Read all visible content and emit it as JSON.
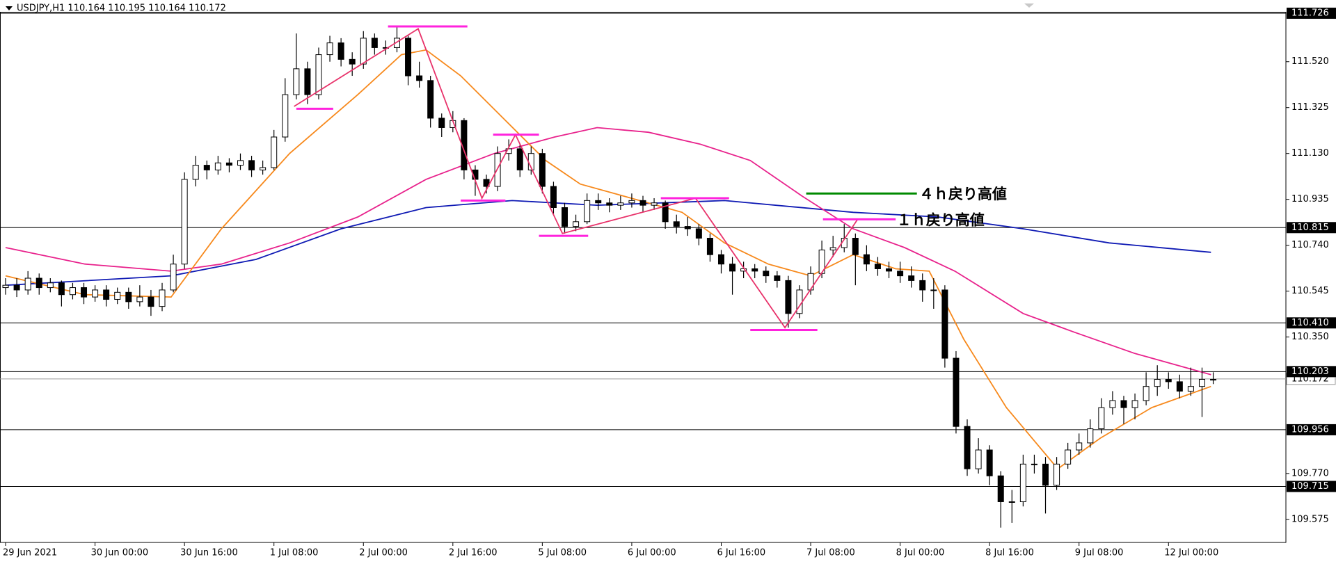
{
  "chart_data": {
    "type": "candlestick",
    "title": "USDJPY,H1  110.164 110.195 110.164 110.172",
    "xlim": [
      -0.5,
      114.5
    ],
    "ylim": [
      109.477,
      111.732
    ],
    "xticks": [
      {
        "value": 0,
        "label": "29 Jun 2021"
      },
      {
        "value": 8,
        "label": "30 Jun 00:00"
      },
      {
        "value": 16,
        "label": "30 Jun 16:00"
      },
      {
        "value": 24,
        "label": "1 Jul 08:00"
      },
      {
        "value": 32,
        "label": "2 Jul 00:00"
      },
      {
        "value": 40,
        "label": "2 Jul 16:00"
      },
      {
        "value": 48,
        "label": "5 Jul 08:00"
      },
      {
        "value": 56,
        "label": "6 Jul 00:00"
      },
      {
        "value": 64,
        "label": "6 Jul 16:00"
      },
      {
        "value": 72,
        "label": "7 Jul 08:00"
      },
      {
        "value": 80,
        "label": "8 Jul 00:00"
      },
      {
        "value": 88,
        "label": "8 Jul 16:00"
      },
      {
        "value": 96,
        "label": "9 Jul 08:00"
      },
      {
        "value": 104,
        "label": "12 Jul 00:00"
      }
    ],
    "yticks": [
      {
        "value": 111.52,
        "label": "111.520"
      },
      111.325,
      {
        "value": 111.13,
        "label": "111.130"
      },
      110.935,
      {
        "value": 110.74,
        "label": "110.740"
      },
      110.545,
      {
        "value": 110.35,
        "label": "110.350"
      },
      {
        "value": 109.77,
        "label": "109.770"
      },
      109.575
    ],
    "hlines": [
      111.726,
      110.815,
      {
        "value": 110.41,
        "label": "110.410"
      },
      110.203,
      109.956,
      109.715
    ],
    "bid": 110.172,
    "candles": [
      [
        110.56,
        110.6,
        110.53,
        110.57
      ],
      [
        110.57,
        110.6,
        110.52,
        110.55
      ],
      [
        110.55,
        110.63,
        110.53,
        110.6
      ],
      [
        110.6,
        110.62,
        110.53,
        110.56
      ],
      [
        110.56,
        110.6,
        110.54,
        110.58
      ],
      [
        110.58,
        110.59,
        110.48,
        110.53
      ],
      [
        110.53,
        110.58,
        110.51,
        110.56
      ],
      [
        110.56,
        110.58,
        110.49,
        110.52
      ],
      [
        110.52,
        110.57,
        110.5,
        110.55
      ],
      [
        110.55,
        110.57,
        110.48,
        110.51
      ],
      [
        110.51,
        110.56,
        110.49,
        110.54
      ],
      [
        110.54,
        110.56,
        110.47,
        110.5
      ],
      [
        110.5,
        110.57,
        110.48,
        110.52
      ],
      [
        110.52,
        110.55,
        110.44,
        110.48
      ],
      [
        110.48,
        110.58,
        110.46,
        110.55
      ],
      [
        110.55,
        110.7,
        110.54,
        110.66
      ],
      [
        110.66,
        111.05,
        110.64,
        111.02
      ],
      [
        111.02,
        111.12,
        110.99,
        111.08
      ],
      [
        111.08,
        111.1,
        111.02,
        111.06
      ],
      [
        111.06,
        111.12,
        111.04,
        111.09
      ],
      [
        111.09,
        111.11,
        111.05,
        111.08
      ],
      [
        111.08,
        111.13,
        111.06,
        111.1
      ],
      [
        111.1,
        111.12,
        111.03,
        111.06
      ],
      [
        111.06,
        111.1,
        111.04,
        111.07
      ],
      [
        111.07,
        111.23,
        111.06,
        111.2
      ],
      [
        111.2,
        111.45,
        111.18,
        111.38
      ],
      [
        111.38,
        111.64,
        111.36,
        111.49
      ],
      [
        111.49,
        111.52,
        111.34,
        111.38
      ],
      [
        111.38,
        111.58,
        111.36,
        111.55
      ],
      [
        111.55,
        111.63,
        111.52,
        111.6
      ],
      [
        111.6,
        111.62,
        111.5,
        111.53
      ],
      [
        111.53,
        111.56,
        111.46,
        111.51
      ],
      [
        111.51,
        111.65,
        111.49,
        111.62
      ],
      [
        111.62,
        111.64,
        111.55,
        111.58
      ],
      [
        111.58,
        111.61,
        111.55,
        111.58
      ],
      [
        111.58,
        111.67,
        111.56,
        111.62
      ],
      [
        111.62,
        111.63,
        111.42,
        111.46
      ],
      [
        111.46,
        111.52,
        111.41,
        111.44
      ],
      [
        111.44,
        111.46,
        111.24,
        111.28
      ],
      [
        111.28,
        111.3,
        111.2,
        111.24
      ],
      [
        111.24,
        111.31,
        111.22,
        111.27
      ],
      [
        111.27,
        111.28,
        111.02,
        111.06
      ],
      [
        111.06,
        111.08,
        110.95,
        111.02
      ],
      [
        111.02,
        111.04,
        110.96,
        110.99
      ],
      [
        110.99,
        111.16,
        110.97,
        111.13
      ],
      [
        111.13,
        111.19,
        111.1,
        111.15
      ],
      [
        111.15,
        111.17,
        111.03,
        111.06
      ],
      [
        111.06,
        111.16,
        111.04,
        111.13
      ],
      [
        111.13,
        111.15,
        110.96,
        110.99
      ],
      [
        110.99,
        111.01,
        110.87,
        110.9
      ],
      [
        110.9,
        110.92,
        110.79,
        110.82
      ],
      [
        110.82,
        110.87,
        110.8,
        110.84
      ],
      [
        110.84,
        110.96,
        110.83,
        110.93
      ],
      [
        110.93,
        110.96,
        110.89,
        110.92
      ],
      [
        110.92,
        110.94,
        110.88,
        110.91
      ],
      [
        110.91,
        110.95,
        110.89,
        110.92
      ],
      [
        110.92,
        110.96,
        110.9,
        110.93
      ],
      [
        110.93,
        110.95,
        110.88,
        110.91
      ],
      [
        110.91,
        110.94,
        110.89,
        110.92
      ],
      [
        110.92,
        110.93,
        110.81,
        110.84
      ],
      [
        110.84,
        110.87,
        110.79,
        110.82
      ],
      [
        110.82,
        110.86,
        110.78,
        110.81
      ],
      [
        110.81,
        110.83,
        110.74,
        110.77
      ],
      [
        110.77,
        110.79,
        110.67,
        110.7
      ],
      [
        110.7,
        110.72,
        110.62,
        110.66
      ],
      [
        110.66,
        110.69,
        110.53,
        110.63
      ],
      [
        110.63,
        110.67,
        110.6,
        110.64
      ],
      [
        110.64,
        110.66,
        110.6,
        110.63
      ],
      [
        110.63,
        110.65,
        110.58,
        110.61
      ],
      [
        110.61,
        110.63,
        110.56,
        110.59
      ],
      [
        110.59,
        110.61,
        110.39,
        110.45
      ],
      [
        110.45,
        110.57,
        110.43,
        110.55
      ],
      [
        110.55,
        110.65,
        110.53,
        110.62
      ],
      [
        110.62,
        110.76,
        110.6,
        110.72
      ],
      [
        110.72,
        110.78,
        110.69,
        110.73
      ],
      [
        110.73,
        110.83,
        110.71,
        110.77
      ],
      [
        110.77,
        110.79,
        110.57,
        110.7
      ],
      [
        110.7,
        110.74,
        110.63,
        110.66
      ],
      [
        110.66,
        110.69,
        110.61,
        110.64
      ],
      [
        110.64,
        110.67,
        110.6,
        110.63
      ],
      [
        110.63,
        110.67,
        110.58,
        110.61
      ],
      [
        110.61,
        110.65,
        110.56,
        110.59
      ],
      [
        110.59,
        110.62,
        110.5,
        110.55
      ],
      [
        110.55,
        110.6,
        110.47,
        110.55
      ],
      [
        110.55,
        110.57,
        110.22,
        110.26
      ],
      [
        110.26,
        110.29,
        109.94,
        109.97
      ],
      [
        109.97,
        110.0,
        109.76,
        109.79
      ],
      [
        109.79,
        109.92,
        109.77,
        109.87
      ],
      [
        109.87,
        109.89,
        109.72,
        109.76
      ],
      [
        109.76,
        109.78,
        109.54,
        109.65
      ],
      [
        109.65,
        109.7,
        109.56,
        109.65
      ],
      [
        109.65,
        109.85,
        109.63,
        109.81
      ],
      [
        109.81,
        109.85,
        109.77,
        109.81
      ],
      [
        109.81,
        109.84,
        109.6,
        109.72
      ],
      [
        109.72,
        109.84,
        109.7,
        109.81
      ],
      [
        109.81,
        109.9,
        109.79,
        109.87
      ],
      [
        109.87,
        109.94,
        109.85,
        109.9
      ],
      [
        109.9,
        110.0,
        109.88,
        109.96
      ],
      [
        109.96,
        110.09,
        109.94,
        110.05
      ],
      [
        110.05,
        110.12,
        110.02,
        110.08
      ],
      [
        110.08,
        110.1,
        109.98,
        110.05
      ],
      [
        110.05,
        110.11,
        110.0,
        110.08
      ],
      [
        110.08,
        110.2,
        110.06,
        110.14
      ],
      [
        110.14,
        110.23,
        110.1,
        110.17
      ],
      [
        110.17,
        110.2,
        110.13,
        110.16
      ],
      [
        110.16,
        110.19,
        110.09,
        110.12
      ],
      [
        110.12,
        110.22,
        110.1,
        110.14
      ],
      [
        110.14,
        110.22,
        110.01,
        110.17
      ],
      [
        110.17,
        110.2,
        110.15,
        110.17
      ]
    ],
    "series": [
      {
        "color": "#0f1ab4",
        "x": [
          0,
          14.8,
          22.4,
          30,
          37.6,
          45.3,
          52.9,
          64.3,
          75.8,
          83.4,
          91,
          98.7,
          107.8
        ],
        "values": [
          110.57,
          110.61,
          110.68,
          110.81,
          110.9,
          110.93,
          110.91,
          110.93,
          110.88,
          110.86,
          110.81,
          110.75,
          110.71
        ]
      },
      {
        "color": "#e8228c",
        "x": [
          0,
          7.1,
          14.8,
          19.3,
          25.4,
          31.5,
          37.6,
          43.7,
          49.1,
          52.9,
          57.5,
          62.1,
          66.6,
          71.2,
          75.8,
          80.4,
          84.9,
          91,
          95.6,
          101,
          107.8
        ],
        "values": [
          110.73,
          110.66,
          110.63,
          110.66,
          110.75,
          110.86,
          111.02,
          111.13,
          111.2,
          111.24,
          111.22,
          111.17,
          111.1,
          110.95,
          110.81,
          110.73,
          110.63,
          110.45,
          110.37,
          110.28,
          110.19
        ]
      },
      {
        "color": "#f7891c",
        "x": [
          0,
          7.1,
          14.8,
          19.3,
          25.4,
          31.5,
          35.4,
          37.6,
          40.7,
          44.5,
          48.3,
          51.4,
          55.2,
          60.5,
          64.3,
          68.2,
          72,
          75.8,
          79.6,
          82.6,
          85.7,
          89.5,
          94.1,
          97.9,
          102.5,
          107.8
        ],
        "values": [
          110.61,
          110.53,
          110.52,
          110.81,
          111.13,
          111.38,
          111.55,
          111.57,
          111.46,
          111.28,
          111.1,
          111.0,
          110.95,
          110.88,
          110.75,
          110.66,
          110.61,
          110.7,
          110.64,
          110.63,
          110.34,
          110.05,
          109.79,
          109.92,
          110.05,
          110.14
        ]
      }
    ],
    "zigzag": {
      "color": "#e8336b",
      "x": [
        25.8,
        36.9,
        42.6,
        45.6,
        49.8,
        61.7,
        69.7,
        76.2
      ],
      "values": [
        111.33,
        111.66,
        110.94,
        111.21,
        110.79,
        110.94,
        110.39,
        110.85
      ]
    },
    "segments": [
      {
        "color": "#ff22dd",
        "x": [
          26.0,
          29.3
        ],
        "values": [
          111.32,
          111.32
        ]
      },
      {
        "color": "#ff22dd",
        "x": [
          34.2,
          41.3
        ],
        "values": [
          111.67,
          111.67
        ]
      },
      {
        "color": "#ff22dd",
        "x": [
          40.7,
          44.7
        ],
        "values": [
          110.93,
          110.93
        ]
      },
      {
        "color": "#ff22dd",
        "x": [
          43.6,
          47.7
        ],
        "values": [
          111.21,
          111.21
        ]
      },
      {
        "color": "#ff22dd",
        "x": [
          47.7,
          52.1
        ],
        "values": [
          110.78,
          110.78
        ]
      },
      {
        "color": "#ff22dd",
        "x": [
          58.6,
          64.7
        ],
        "values": [
          110.94,
          110.94
        ]
      },
      {
        "color": "#ff22dd",
        "x": [
          66.6,
          72.6
        ],
        "values": [
          110.38,
          110.38
        ]
      },
      {
        "color": "#ff22dd",
        "x": [
          73.1,
          79.6
        ],
        "values": [
          110.85,
          110.85
        ]
      },
      {
        "color": "#008a00",
        "x": [
          71.6,
          81.5
        ],
        "values": [
          110.96,
          110.96
        ]
      }
    ],
    "annotations": [
      {
        "text": "４ｈ戻り高値",
        "x": 81.7,
        "value": 110.96
      },
      {
        "text": "１ｈ戻り高値",
        "x": 79.7,
        "value": 110.85
      }
    ]
  }
}
